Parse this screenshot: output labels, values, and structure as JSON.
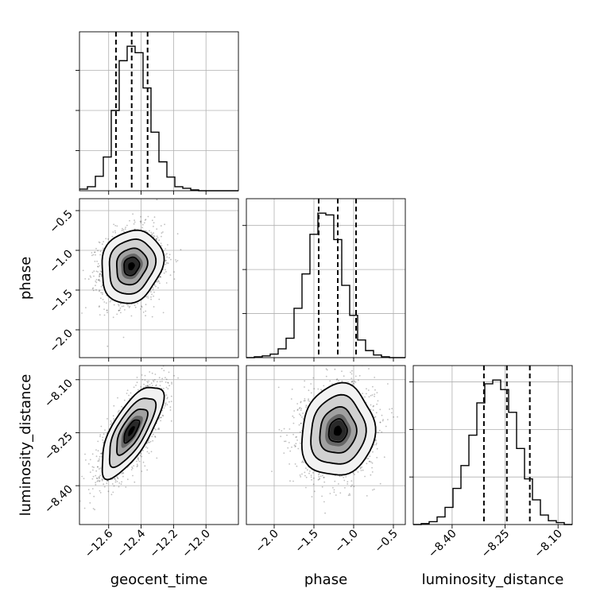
{
  "chart_data": {
    "type": "corner",
    "parameters": [
      {
        "name": "geocent_time",
        "label": "geocent_time",
        "range": [
          -12.78,
          -11.8
        ],
        "ticks": [
          -12.6,
          -12.4,
          -12.2,
          -12.0
        ],
        "tick_labels": [
          "−12.6",
          "−12.4",
          "−12.2",
          "−12.0"
        ],
        "mean": -12.46,
        "sd": 0.095,
        "quantiles": [
          -12.555,
          -12.458,
          -12.36
        ],
        "hist_bins": {
          "start": -12.78,
          "width": 0.049
        },
        "hist_counts": [
          2,
          5,
          18,
          42,
          100,
          162,
          180,
          172,
          128,
          73,
          36,
          17,
          5,
          3,
          1,
          0,
          0,
          0,
          0,
          0
        ]
      },
      {
        "name": "phase",
        "label": "phase",
        "range": [
          -2.35,
          -0.35
        ],
        "ticks": [
          -2.0,
          -1.5,
          -1.0,
          -0.5
        ],
        "tick_labels": [
          "−2.0",
          "−1.5",
          "−1.0",
          "−0.5"
        ],
        "mean": -1.2,
        "sd": 0.23,
        "quantiles": [
          -1.44,
          -1.2,
          -0.97
        ],
        "hist_bins": {
          "start": -2.35,
          "width": 0.1
        },
        "hist_counts": [
          0,
          1,
          2,
          4,
          10,
          22,
          56,
          95,
          140,
          164,
          162,
          134,
          82,
          48,
          20,
          8,
          3,
          1,
          0,
          0
        ]
      },
      {
        "name": "luminosity_distance",
        "label": "luminosity_distance",
        "range": [
          -8.51,
          -8.06
        ],
        "ticks": [
          -8.4,
          -8.25,
          -8.1
        ],
        "tick_labels": [
          "−8.40",
          "−8.25",
          "−8.10"
        ],
        "mean": -8.245,
        "sd": 0.065,
        "quantiles": [
          -8.31,
          -8.245,
          -8.18
        ],
        "hist_bins": {
          "start": -8.51,
          "width": 0.0225
        },
        "hist_counts": [
          0,
          1,
          3,
          8,
          18,
          38,
          62,
          94,
          128,
          148,
          152,
          142,
          118,
          80,
          48,
          26,
          10,
          4,
          2,
          0
        ]
      }
    ],
    "correlations": {
      "geocent_time|phase": 0.15,
      "geocent_time|luminosity_distance": 0.72,
      "phase|luminosity_distance": 0.08
    },
    "contour_levels_sigma": [
      0.5,
      1.0,
      1.5,
      2.0
    ],
    "grid": true
  }
}
